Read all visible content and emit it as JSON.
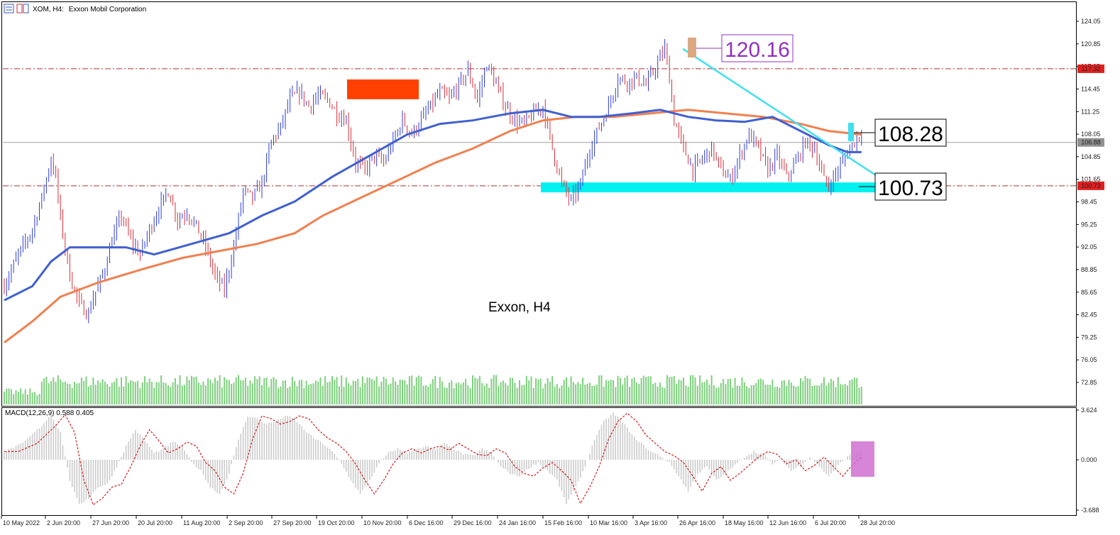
{
  "header": {
    "symbol": "XOM, H4:",
    "company": "Exxon Mobil Corporation"
  },
  "colors": {
    "bull": "#2f3fd6",
    "bear": "#d2303a",
    "ma_fast": "#4060d0",
    "ma_slow": "#f08050",
    "volume": "#7fcf7f",
    "level": "#b03030",
    "trendline": "#40e0f0",
    "support_zone": "#00f0f0",
    "resistance_zone": "#ff4000",
    "macd_hist": "#c8c8c8",
    "macd_signal": "#cc2020",
    "macd_box": "#d070d0",
    "peak_box": "#dca882",
    "peak_label": "#9030c0",
    "price_tag": "#e02020",
    "current_tag": "#909090"
  },
  "chart_data": [
    {
      "type": "candlestick",
      "title": "Exxon, H4",
      "y_ticks": [
        "124.05",
        "120.85",
        "117.65",
        "114.45",
        "111.25",
        "108.05",
        "104.85",
        "101.65",
        "98.45",
        "95.25",
        "92.05",
        "88.85",
        "85.65",
        "82.45",
        "79.25",
        "76.05",
        "72.85"
      ],
      "ylim": [
        71.0,
        125.8
      ],
      "x_labels": [
        "10 May 2022",
        "2 Jun 20:00",
        "27 Jun 20:00",
        "20 Jul 20:00",
        "11 Aug 20:00",
        "2 Sep 20:00",
        "27 Sep 20:00",
        "19 Oct 20:00",
        "10 Nov 20:00",
        "6 Dec 16:00",
        "29 Dec 16:00",
        "24 Jan 16:00",
        "15 Feb 16:00",
        "10 Mar 16:00",
        "3 Apr 16:00",
        "26 Apr 16:00",
        "18 May 16:00",
        "12 Jun 16:00",
        "6 Jul 20:00",
        "28 Jul 20:00"
      ],
      "price_path": [
        [
          0,
          86.5
        ],
        [
          3,
          91.0
        ],
        [
          6,
          94.5
        ],
        [
          8,
          99.0
        ],
        [
          10,
          104.5
        ],
        [
          11,
          102.0
        ],
        [
          12,
          96.0
        ],
        [
          14,
          88.0
        ],
        [
          16,
          84.0
        ],
        [
          18,
          82.5
        ],
        [
          19,
          85.0
        ],
        [
          21,
          88.0
        ],
        [
          23,
          93.0
        ],
        [
          25,
          96.5
        ],
        [
          27,
          93.0
        ],
        [
          29,
          91.0
        ],
        [
          31,
          94.5
        ],
        [
          33,
          97.5
        ],
        [
          35,
          100.0
        ],
        [
          37,
          96.0
        ],
        [
          39,
          97.0
        ],
        [
          41,
          95.0
        ],
        [
          43,
          92.0
        ],
        [
          45,
          88.0
        ],
        [
          47,
          86.0
        ],
        [
          49,
          92.0
        ],
        [
          51,
          100.0
        ],
        [
          53,
          99.0
        ],
        [
          55,
          101.0
        ],
        [
          57,
          107.0
        ],
        [
          59,
          109.0
        ],
        [
          61,
          113.0
        ],
        [
          63,
          114.0
        ],
        [
          65,
          112.0
        ],
        [
          67,
          113.5
        ],
        [
          69,
          113.0
        ],
        [
          71,
          111.0
        ],
        [
          73,
          110.0
        ],
        [
          75,
          104.0
        ],
        [
          77,
          103.0
        ],
        [
          79,
          105.0
        ],
        [
          81,
          104.0
        ],
        [
          83,
          107.0
        ],
        [
          85,
          110.0
        ],
        [
          87,
          108.0
        ],
        [
          89,
          110.0
        ],
        [
          91,
          112.0
        ],
        [
          93,
          114.0
        ],
        [
          95,
          113.0
        ],
        [
          97,
          115.0
        ],
        [
          99,
          117.0
        ],
        [
          101,
          113.0
        ],
        [
          103,
          118.0
        ],
        [
          105,
          115.0
        ],
        [
          107,
          112.0
        ],
        [
          109,
          110.0
        ],
        [
          111,
          109.5
        ],
        [
          113,
          111.0
        ],
        [
          115,
          112.0
        ],
        [
          117,
          106.0
        ],
        [
          119,
          101.0
        ],
        [
          121,
          98.5
        ],
        [
          123,
          101.0
        ],
        [
          125,
          106.0
        ],
        [
          127,
          109.0
        ],
        [
          129,
          112.0
        ],
        [
          131,
          116.0
        ],
        [
          133,
          115.5
        ],
        [
          135,
          116.0
        ],
        [
          137,
          115.0
        ],
        [
          139,
          117.5
        ],
        [
          141,
          120.16
        ],
        [
          142,
          116.0
        ],
        [
          143,
          110.0
        ],
        [
          145,
          106.0
        ],
        [
          147,
          103.0
        ],
        [
          149,
          104.5
        ],
        [
          151,
          106.0
        ],
        [
          153,
          103.0
        ],
        [
          155,
          101.5
        ],
        [
          157,
          105.0
        ],
        [
          159,
          108.0
        ],
        [
          161,
          106.0
        ],
        [
          163,
          103.0
        ],
        [
          165,
          105.0
        ],
        [
          167,
          102.0
        ],
        [
          169,
          104.0
        ],
        [
          171,
          107.0
        ],
        [
          173,
          106.0
        ],
        [
          175,
          101.5
        ],
        [
          176,
          100.73
        ],
        [
          178,
          103.0
        ],
        [
          180,
          105.5
        ],
        [
          182,
          107.5
        ],
        [
          183,
          108.28
        ]
      ],
      "ma_fast": [
        [
          0,
          84.5
        ],
        [
          6,
          86.5
        ],
        [
          10,
          90.0
        ],
        [
          14,
          92.0
        ],
        [
          20,
          92.0
        ],
        [
          26,
          92.0
        ],
        [
          32,
          91.0
        ],
        [
          40,
          92.5
        ],
        [
          48,
          94.0
        ],
        [
          55,
          96.5
        ],
        [
          62,
          98.5
        ],
        [
          70,
          102.0
        ],
        [
          78,
          105.0
        ],
        [
          86,
          108.0
        ],
        [
          93,
          109.5
        ],
        [
          100,
          110.0
        ],
        [
          108,
          111.0
        ],
        [
          115,
          111.5
        ],
        [
          121,
          110.5
        ],
        [
          127,
          110.5
        ],
        [
          134,
          111.0
        ],
        [
          140,
          111.5
        ],
        [
          146,
          110.5
        ],
        [
          152,
          110.0
        ],
        [
          158,
          109.8
        ],
        [
          164,
          110.5
        ],
        [
          170,
          108.5
        ],
        [
          176,
          106.5
        ],
        [
          180,
          105.5
        ],
        [
          183,
          105.5
        ]
      ],
      "ma_slow": [
        [
          0,
          78.5
        ],
        [
          6,
          81.5
        ],
        [
          12,
          85.0
        ],
        [
          20,
          87.0
        ],
        [
          30,
          89.0
        ],
        [
          38,
          90.5
        ],
        [
          46,
          91.5
        ],
        [
          54,
          92.5
        ],
        [
          62,
          94.0
        ],
        [
          68,
          96.5
        ],
        [
          76,
          99.0
        ],
        [
          84,
          101.5
        ],
        [
          92,
          104.0
        ],
        [
          100,
          106.0
        ],
        [
          108,
          108.5
        ],
        [
          115,
          110.0
        ],
        [
          122,
          110.5
        ],
        [
          130,
          110.5
        ],
        [
          138,
          111.0
        ],
        [
          146,
          111.5
        ],
        [
          154,
          111.0
        ],
        [
          162,
          110.5
        ],
        [
          170,
          109.5
        ],
        [
          176,
          108.5
        ],
        [
          183,
          108.0
        ]
      ],
      "volume_level": 0.8,
      "annotations": {
        "peak": {
          "value": "120.16"
        },
        "current": {
          "value": "108.28"
        },
        "support": {
          "value": "100.73"
        },
        "resistance_level": {
          "value": "117.32"
        },
        "support_level": {
          "value": "100.73"
        },
        "current_price": {
          "value": "106.88"
        }
      }
    },
    {
      "type": "bar",
      "title": "MACD(12,26,9) 0.588 0.405",
      "y_ticks": [
        "3.624",
        "0.000",
        "-3.688"
      ],
      "ylim": [
        -3.688,
        3.624
      ],
      "histogram": [
        [
          0,
          0.6
        ],
        [
          4,
          1.2
        ],
        [
          8,
          2.5
        ],
        [
          10,
          3.3
        ],
        [
          12,
          2.0
        ],
        [
          14,
          -1.5
        ],
        [
          16,
          -3.3
        ],
        [
          18,
          -2.8
        ],
        [
          20,
          -2.0
        ],
        [
          22,
          -1.8
        ],
        [
          24,
          -0.5
        ],
        [
          26,
          1.0
        ],
        [
          28,
          2.2
        ],
        [
          30,
          1.4
        ],
        [
          32,
          0.5
        ],
        [
          34,
          0.8
        ],
        [
          36,
          1.3
        ],
        [
          38,
          1.0
        ],
        [
          40,
          -0.2
        ],
        [
          42,
          -0.8
        ],
        [
          44,
          -2.0
        ],
        [
          46,
          -2.5
        ],
        [
          48,
          -1.0
        ],
        [
          50,
          1.5
        ],
        [
          52,
          3.2
        ],
        [
          54,
          3.0
        ],
        [
          56,
          2.6
        ],
        [
          58,
          2.8
        ],
        [
          60,
          3.2
        ],
        [
          62,
          3.0
        ],
        [
          64,
          2.2
        ],
        [
          66,
          1.6
        ],
        [
          68,
          1.2
        ],
        [
          70,
          0.6
        ],
        [
          72,
          -0.3
        ],
        [
          74,
          -1.5
        ],
        [
          76,
          -2.5
        ],
        [
          78,
          -1.5
        ],
        [
          80,
          -0.3
        ],
        [
          82,
          0.5
        ],
        [
          84,
          0.8
        ],
        [
          86,
          0.5
        ],
        [
          88,
          0.8
        ],
        [
          90,
          1.0
        ],
        [
          92,
          0.7
        ],
        [
          94,
          1.2
        ],
        [
          96,
          0.8
        ],
        [
          98,
          0.4
        ],
        [
          100,
          0.3
        ],
        [
          102,
          0.8
        ],
        [
          104,
          0.5
        ],
        [
          106,
          -0.5
        ],
        [
          108,
          -1.0
        ],
        [
          110,
          -1.2
        ],
        [
          112,
          -0.6
        ],
        [
          114,
          -0.2
        ],
        [
          116,
          -0.8
        ],
        [
          118,
          -1.5
        ],
        [
          120,
          -3.2
        ],
        [
          122,
          -2.0
        ],
        [
          124,
          -0.5
        ],
        [
          126,
          1.5
        ],
        [
          128,
          2.8
        ],
        [
          130,
          3.4
        ],
        [
          132,
          2.8
        ],
        [
          134,
          1.8
        ],
        [
          136,
          1.2
        ],
        [
          138,
          0.6
        ],
        [
          140,
          0.3
        ],
        [
          142,
          -0.2
        ],
        [
          144,
          -1.2
        ],
        [
          146,
          -2.3
        ],
        [
          148,
          -1.0
        ],
        [
          150,
          -0.5
        ],
        [
          152,
          -1.5
        ],
        [
          154,
          -1.0
        ],
        [
          156,
          -0.4
        ],
        [
          158,
          0.2
        ],
        [
          160,
          0.6
        ],
        [
          162,
          0.4
        ],
        [
          164,
          -0.3
        ],
        [
          166,
          0.0
        ],
        [
          168,
          -0.8
        ],
        [
          170,
          -0.4
        ],
        [
          172,
          0.2
        ],
        [
          174,
          -0.5
        ],
        [
          176,
          -1.2
        ],
        [
          178,
          -0.4
        ],
        [
          180,
          0.2
        ],
        [
          182,
          0.6
        ],
        [
          183,
          0.588
        ]
      ],
      "signal_offset": 3
    }
  ]
}
